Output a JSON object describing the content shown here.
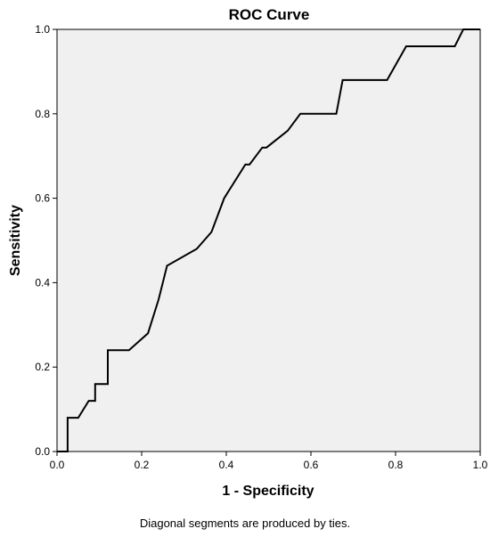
{
  "footnote": "Diagonal segments are produced by ties.",
  "chart_data": {
    "type": "line",
    "title": "ROC Curve",
    "xlabel": "1 - Specificity",
    "ylabel": "Sensitivity",
    "xlim": [
      0,
      1
    ],
    "ylim": [
      0,
      1
    ],
    "xticks": [
      "0.0",
      "0.2",
      "0.4",
      "0.6",
      "0.8",
      "1.0"
    ],
    "yticks": [
      "0.0",
      "0.2",
      "0.4",
      "0.6",
      "0.8",
      "1.0"
    ],
    "grid": false,
    "plot_background": "#f0f0f0",
    "line_color": "#000000",
    "series": [
      {
        "x": [
          0.0,
          0.025,
          0.025,
          0.05,
          0.075,
          0.09,
          0.09,
          0.12,
          0.12,
          0.17,
          0.215,
          0.24,
          0.26,
          0.33,
          0.365,
          0.395,
          0.445,
          0.455,
          0.485,
          0.495,
          0.545,
          0.575,
          0.66,
          0.675,
          0.78,
          0.825,
          0.94,
          0.96,
          1.0
        ],
        "y": [
          0.0,
          0.0,
          0.08,
          0.08,
          0.12,
          0.12,
          0.16,
          0.16,
          0.24,
          0.24,
          0.28,
          0.36,
          0.44,
          0.48,
          0.52,
          0.6,
          0.68,
          0.68,
          0.72,
          0.72,
          0.76,
          0.8,
          0.8,
          0.88,
          0.88,
          0.96,
          0.96,
          1.0,
          1.0
        ]
      }
    ]
  }
}
